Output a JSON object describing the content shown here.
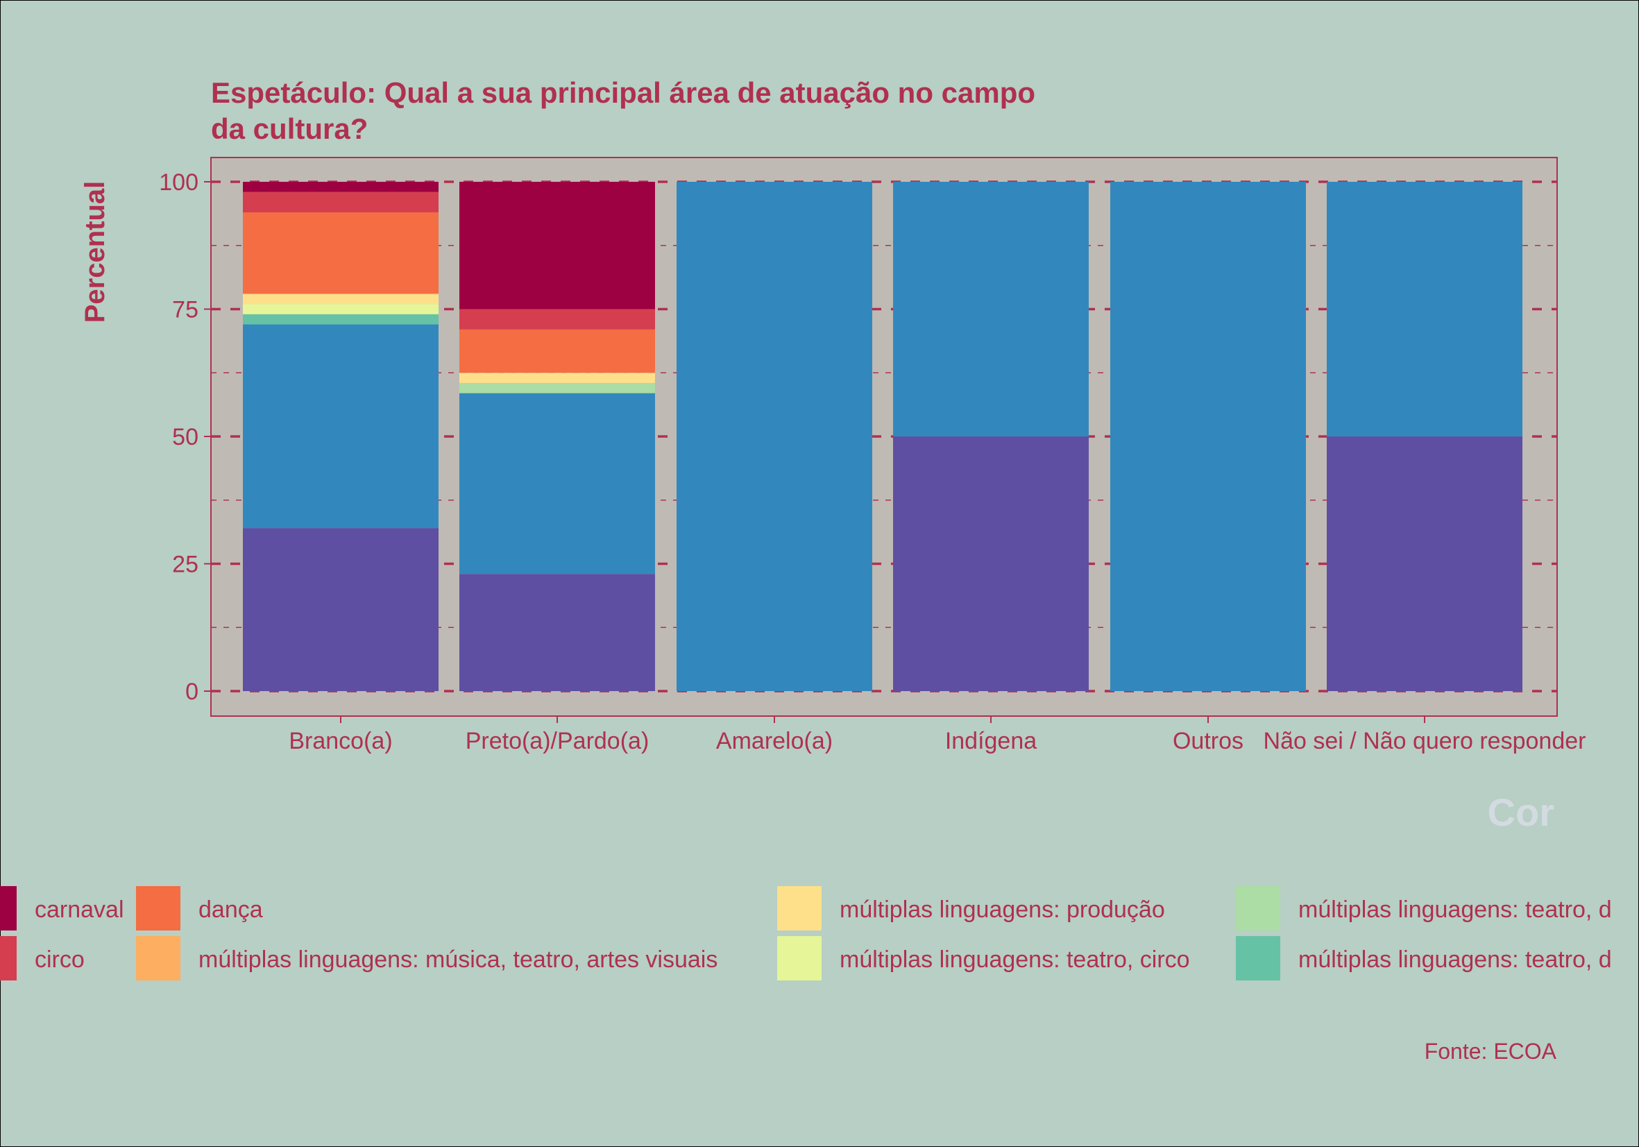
{
  "chart_data": {
    "type": "bar",
    "stacked": true,
    "title_line1": "Espetáculo: Qual a sua principal área de atuação no campo",
    "title_line2": "da cultura?",
    "xlabel": "",
    "ylabel": "Percentual",
    "ylim": [
      0,
      100
    ],
    "yticks": [
      "0",
      "25",
      "50",
      "75",
      "100"
    ],
    "categories": [
      "Branco(a)",
      "Preto(a)/Pardo(a)",
      "Amarelo(a)",
      "Indígena",
      "Outros",
      "Não sei / Não quero responder"
    ],
    "legend_title": "Cor",
    "caption": "Fonte: ECOA",
    "grid": true,
    "series": [
      {
        "name": "carnaval",
        "color": "#9e0142",
        "values": [
          2,
          25,
          0,
          0,
          0,
          0
        ]
      },
      {
        "name": "circo",
        "color": "#d53e4f",
        "values": [
          4,
          4,
          0,
          0,
          0,
          0
        ]
      },
      {
        "name": "dança",
        "color": "#f46d43",
        "values": [
          16,
          8.5,
          0,
          0,
          0,
          0
        ]
      },
      {
        "name": "múltiplas linguagens: música, teatro, artes visuais",
        "color": "#fdae61",
        "values": [
          0,
          0,
          0,
          0,
          0,
          0
        ]
      },
      {
        "name": "múltiplas linguagens: produção",
        "color": "#fee08b",
        "values": [
          2,
          2,
          0,
          0,
          0,
          0
        ]
      },
      {
        "name": "múltiplas linguagens: teatro, circo",
        "color": "#e6f598",
        "values": [
          2,
          0,
          0,
          0,
          0,
          0
        ]
      },
      {
        "name": "múltiplas linguagens: teatro, d",
        "color": "#abdda4",
        "values": [
          0,
          2,
          0,
          0,
          0,
          0
        ]
      },
      {
        "name": "múltiplas linguagens: teatro, d",
        "color": "#66c2a5",
        "values": [
          2,
          0,
          0,
          0,
          0,
          0
        ]
      },
      {
        "name": "",
        "color": "#3288bd",
        "values": [
          40,
          35.5,
          100,
          50,
          100,
          50
        ]
      },
      {
        "name": "",
        "color": "#5e4fa2",
        "values": [
          32,
          23,
          0,
          50,
          0,
          50
        ]
      }
    ]
  }
}
